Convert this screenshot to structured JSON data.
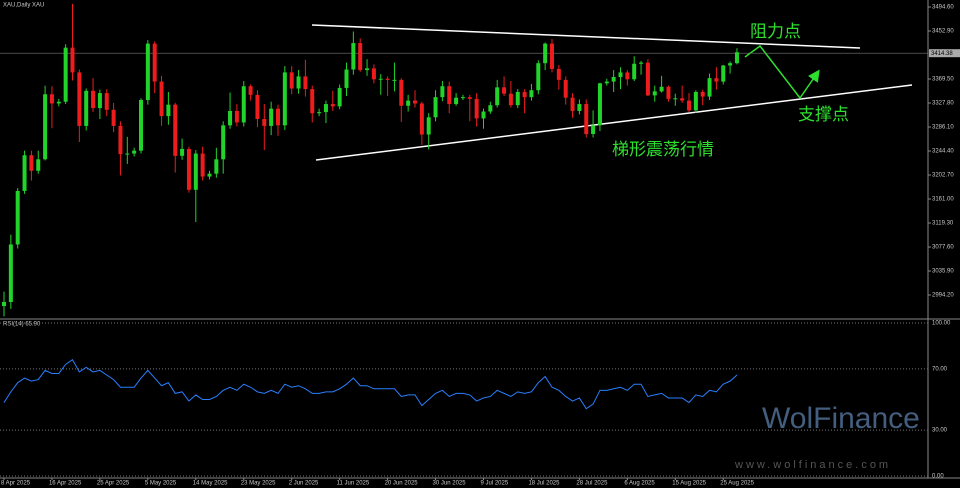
{
  "header": {
    "symbol": "XAU,Daily  XAU"
  },
  "chart_data": {
    "type": "candlestick",
    "categories": [
      "8 Apr 2025",
      null,
      null,
      null,
      null,
      null,
      null,
      "16 Apr 2025",
      null,
      null,
      null,
      null,
      null,
      null,
      "25 Apr 2025",
      null,
      null,
      null,
      null,
      null,
      null,
      "5 May 2025",
      null,
      null,
      null,
      null,
      null,
      null,
      "14 May 2025",
      null,
      null,
      null,
      null,
      null,
      null,
      "23 May 2025",
      null,
      null,
      null,
      null,
      null,
      null,
      "2 Jun 2025",
      null,
      null,
      null,
      null,
      null,
      null,
      "11 Jun 2025",
      null,
      null,
      null,
      null,
      null,
      null,
      "20 Jun 2025",
      null,
      null,
      null,
      null,
      null,
      null,
      "30 Jun 2025",
      null,
      null,
      null,
      null,
      null,
      null,
      "9 Jul 2025",
      null,
      null,
      null,
      null,
      null,
      null,
      "18 Jul 2025",
      null,
      null,
      null,
      null,
      null,
      null,
      "28 Jul 2025",
      null,
      null,
      null,
      null,
      null,
      null,
      "6 Aug 2025",
      null,
      null,
      null,
      null,
      null,
      null,
      "15 Aug 2025",
      null,
      null,
      null,
      null,
      null,
      null,
      "25 Aug 2025",
      null,
      null
    ],
    "open": [
      2975,
      2982,
      3082,
      3175,
      3237,
      3210,
      3230,
      3343,
      3327,
      3330,
      3424,
      3381,
      3288,
      3349,
      3319,
      3345,
      3316,
      3288,
      3239,
      3240,
      3245,
      3333,
      3431,
      3365,
      3305,
      3325,
      3236,
      3248,
      3177,
      3240,
      3200,
      3205,
      3230,
      3289,
      3314,
      3294,
      3357,
      3342,
      3300,
      3288,
      3318,
      3289,
      3381,
      3353,
      3374,
      3352,
      3310,
      3312,
      3326,
      3322,
      3354,
      3386,
      3432,
      3385,
      3388,
      3369,
      3370,
      3368,
      3368,
      3323,
      3332,
      3327,
      3273,
      3303,
      3338,
      3357,
      3326,
      3337,
      3338,
      3335,
      3301,
      3313,
      3324,
      3355,
      3344,
      3324,
      3347,
      3338,
      3350,
      3397,
      3431,
      3387,
      3368,
      3337,
      3314,
      3326,
      3274,
      3289,
      3362,
      3365,
      3373,
      3381,
      3369,
      3396,
      3398,
      3341,
      3348,
      3356,
      3335,
      3336,
      3332,
      3315,
      3347,
      3339,
      3371,
      3365,
      3393,
      3397
    ],
    "high": [
      3000,
      3099,
      3180,
      3245,
      3245,
      3245,
      3358,
      3357,
      3335,
      3430,
      3500,
      3386,
      3353,
      3371,
      3351,
      3352,
      3328,
      3296,
      3269,
      3250,
      3336,
      3437,
      3435,
      3375,
      3347,
      3328,
      3266,
      3252,
      3246,
      3252,
      3210,
      3250,
      3296,
      3346,
      3326,
      3366,
      3360,
      3350,
      3326,
      3330,
      3325,
      3392,
      3392,
      3385,
      3403,
      3358,
      3318,
      3332,
      3349,
      3360,
      3398,
      3452,
      3440,
      3404,
      3395,
      3378,
      3374,
      3398,
      3371,
      3342,
      3350,
      3330,
      3310,
      3350,
      3366,
      3365,
      3345,
      3342,
      3342,
      3345,
      3318,
      3330,
      3368,
      3374,
      3366,
      3352,
      3352,
      3361,
      3402,
      3433,
      3439,
      3394,
      3374,
      3345,
      3334,
      3334,
      3315,
      3363,
      3370,
      3385,
      3390,
      3385,
      3409,
      3401,
      3404,
      3358,
      3375,
      3358,
      3344,
      3358,
      3345,
      3350,
      3351,
      3379,
      3390,
      3394,
      3400,
      3423
    ],
    "low": [
      2957,
      2970,
      3075,
      3170,
      3193,
      3205,
      3228,
      3284,
      3322,
      3326,
      3367,
      3260,
      3280,
      3312,
      3300,
      3305,
      3277,
      3202,
      3222,
      3235,
      3240,
      3325,
      3345,
      3288,
      3290,
      3207,
      3229,
      3172,
      3121,
      3193,
      3195,
      3198,
      3205,
      3283,
      3287,
      3287,
      3332,
      3286,
      3246,
      3272,
      3271,
      3281,
      3343,
      3344,
      3339,
      3294,
      3305,
      3293,
      3314,
      3317,
      3340,
      3377,
      3382,
      3375,
      3362,
      3342,
      3340,
      3348,
      3295,
      3313,
      3320,
      3255,
      3247,
      3296,
      3331,
      3310,
      3323,
      3333,
      3296,
      3287,
      3283,
      3309,
      3320,
      3340,
      3320,
      3319,
      3310,
      3332,
      3343,
      3385,
      3381,
      3351,
      3325,
      3302,
      3308,
      3268,
      3268,
      3279,
      3358,
      3347,
      3352,
      3358,
      3366,
      3377,
      3340,
      3330,
      3346,
      3330,
      3323,
      3328,
      3312,
      3311,
      3324,
      3333,
      3351,
      3360,
      3379,
      3395
    ],
    "close": [
      2982,
      3082,
      3175,
      3237,
      3210,
      3230,
      3343,
      3327,
      3330,
      3424,
      3381,
      3288,
      3349,
      3319,
      3345,
      3316,
      3288,
      3239,
      3240,
      3245,
      3333,
      3431,
      3365,
      3305,
      3325,
      3236,
      3248,
      3177,
      3240,
      3200,
      3205,
      3230,
      3289,
      3314,
      3294,
      3357,
      3342,
      3300,
      3288,
      3318,
      3289,
      3381,
      3353,
      3374,
      3352,
      3310,
      3312,
      3326,
      3322,
      3354,
      3386,
      3432,
      3385,
      3388,
      3369,
      3370,
      3368,
      3368,
      3323,
      3332,
      3327,
      3273,
      3303,
      3338,
      3357,
      3326,
      3337,
      3338,
      3335,
      3301,
      3313,
      3324,
      3355,
      3344,
      3324,
      3347,
      3338,
      3350,
      3397,
      3431,
      3387,
      3368,
      3337,
      3314,
      3326,
      3274,
      3289,
      3362,
      3365,
      3373,
      3381,
      3369,
      3396,
      3398,
      3341,
      3348,
      3356,
      3335,
      3336,
      3332,
      3315,
      3347,
      3339,
      3371,
      3365,
      3393,
      3397,
      3416
    ],
    "up_color": "#22d42a",
    "down_color": "#ee1c1c",
    "ylim": [
      2954.2,
      3506.8
    ],
    "yticks": [
      {
        "value": 2994.2,
        "label": "2994.20"
      },
      {
        "value": 3035.9,
        "label": "3035.90"
      },
      {
        "value": 3077.6,
        "label": "3077.60"
      },
      {
        "value": 3119.3,
        "label": "3119.30"
      },
      {
        "value": 3161,
        "label": "3161.00"
      },
      {
        "value": 3202.7,
        "label": "3202.70"
      },
      {
        "value": 3244.4,
        "label": "3244.40"
      },
      {
        "value": 3286.1,
        "label": "3286.10"
      },
      {
        "value": 3327.8,
        "label": "3327.80"
      },
      {
        "value": 3369.5,
        "label": "3369.50"
      },
      {
        "value": 3452.9,
        "label": "3452.90"
      },
      {
        "value": 3494.6,
        "label": "3494.60"
      }
    ],
    "last_price": 3414.38,
    "annotations": {
      "resistance": "阻力点",
      "support": "支撑点",
      "pattern": "梯形震荡行情"
    },
    "rsi": {
      "type": "line",
      "title": "RSI(14) 65.90",
      "color": "#2a7fff",
      "values": [
        48,
        55,
        61,
        64,
        62,
        63,
        69,
        67,
        67,
        73,
        76,
        68,
        71,
        68,
        69,
        66,
        63,
        58,
        58,
        58,
        64,
        69,
        64,
        59,
        61,
        54,
        55,
        49,
        53,
        50,
        50,
        52,
        56,
        58,
        56,
        60,
        58,
        55,
        54,
        56,
        54,
        60,
        58,
        59,
        57,
        54,
        54,
        55,
        55,
        57,
        60,
        64,
        59,
        59,
        57,
        57,
        57,
        57,
        52,
        53,
        53,
        46,
        50,
        54,
        56,
        52,
        54,
        54,
        53,
        49,
        51,
        52,
        56,
        54,
        52,
        55,
        54,
        55,
        61,
        65,
        58,
        56,
        52,
        49,
        51,
        44,
        47,
        56,
        56,
        57,
        58,
        56,
        60,
        60,
        52,
        53,
        54,
        51,
        51,
        51,
        48,
        53,
        52,
        56,
        55,
        60,
        62,
        66
      ],
      "ylim": [
        0,
        100
      ],
      "yticks": [
        {
          "value": 100,
          "label": "100.00"
        },
        {
          "value": 70,
          "label": "70.00"
        },
        {
          "value": 30,
          "label": "30.00"
        },
        {
          "value": 0,
          "label": "0.00"
        }
      ]
    }
  },
  "watermark": {
    "brand": "WolFinance",
    "url": "www.wolfinance.com"
  }
}
